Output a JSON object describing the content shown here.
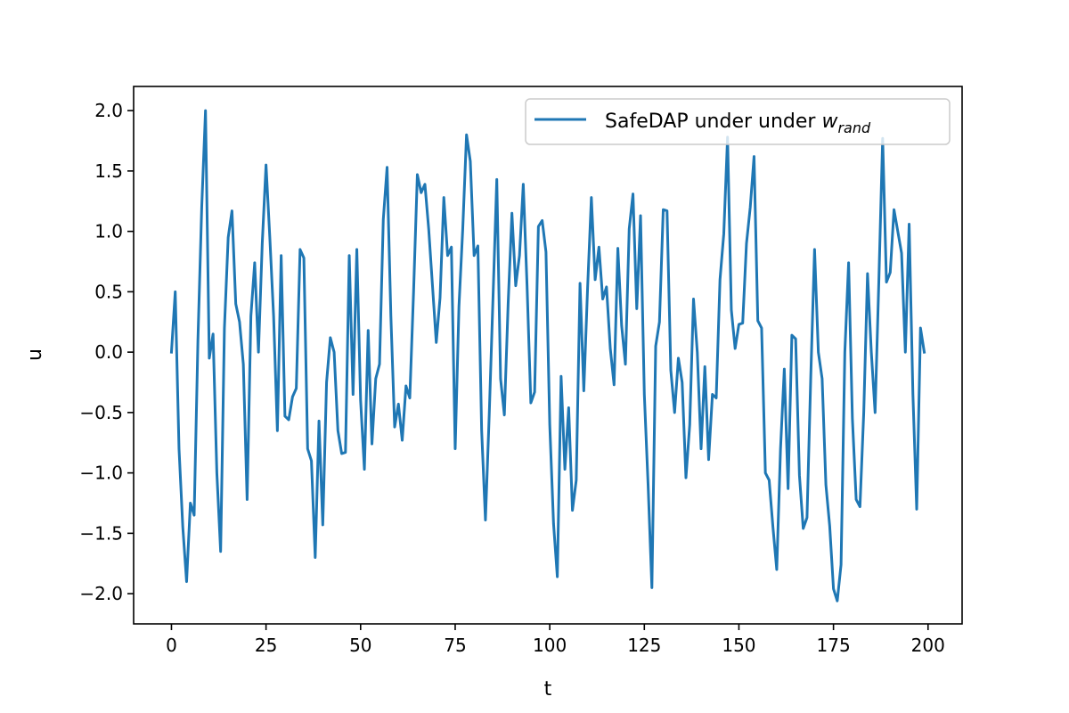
{
  "chart_data": {
    "type": "line",
    "xlabel": "t",
    "ylabel": "u",
    "xlim": [
      -10,
      209
    ],
    "ylim": [
      -2.25,
      2.2
    ],
    "xticks": [
      0,
      25,
      50,
      75,
      100,
      125,
      150,
      175,
      200
    ],
    "xtick_labels": [
      "0",
      "25",
      "50",
      "75",
      "100",
      "125",
      "150",
      "175",
      "200"
    ],
    "yticks": [
      -2.0,
      -1.5,
      -1.0,
      -0.5,
      0.0,
      0.5,
      1.0,
      1.5,
      2.0
    ],
    "ytick_labels": [
      "−2.0",
      "−1.5",
      "−1.0",
      "−0.5",
      "0.0",
      "0.5",
      "1.0",
      "1.5",
      "2.0"
    ],
    "grid": false,
    "legend_position": "top-right",
    "series": [
      {
        "name": "SafeDAP under under w_rand",
        "legend_main": "SafeDAP under under ",
        "legend_var": "w",
        "legend_sub": "rand",
        "color": "#1f77b4",
        "x_start": 0,
        "x_step": 1,
        "values": [
          0.0,
          0.5,
          -0.8,
          -1.45,
          -1.9,
          -1.25,
          -1.35,
          0.1,
          1.2,
          2.0,
          -0.05,
          0.15,
          -1.0,
          -1.65,
          0.2,
          0.95,
          1.17,
          0.4,
          0.25,
          -0.1,
          -1.22,
          0.3,
          0.74,
          0.0,
          0.9,
          1.55,
          0.95,
          0.3,
          -0.65,
          0.8,
          -0.53,
          -0.56,
          -0.37,
          -0.3,
          0.85,
          0.78,
          -0.8,
          -0.9,
          -1.7,
          -0.57,
          -1.43,
          -0.25,
          0.12,
          0.0,
          -0.65,
          -0.84,
          -0.83,
          0.8,
          -0.35,
          0.85,
          -0.4,
          -0.97,
          0.18,
          -0.76,
          -0.22,
          -0.1,
          1.1,
          1.53,
          0.3,
          -0.62,
          -0.43,
          -0.73,
          -0.28,
          -0.38,
          0.5,
          1.47,
          1.32,
          1.39,
          1.02,
          0.55,
          0.08,
          0.45,
          1.28,
          0.8,
          0.87,
          -0.8,
          0.38,
          1.02,
          1.8,
          1.58,
          0.8,
          0.88,
          -0.65,
          -1.39,
          -0.52,
          0.45,
          1.43,
          -0.22,
          -0.52,
          0.4,
          1.15,
          0.55,
          0.8,
          1.39,
          0.55,
          -0.42,
          -0.33,
          1.04,
          1.09,
          0.83,
          -0.6,
          -1.42,
          -1.86,
          -0.2,
          -0.97,
          -0.46,
          -1.31,
          -1.06,
          0.57,
          -0.32,
          0.53,
          1.28,
          0.6,
          0.87,
          0.44,
          0.54,
          0.03,
          -0.27,
          0.86,
          0.22,
          -0.1,
          1.02,
          1.31,
          0.36,
          1.13,
          -0.35,
          -1.1,
          -1.95,
          0.05,
          0.25,
          1.18,
          1.17,
          -0.15,
          -0.5,
          -0.05,
          -0.25,
          -1.04,
          -0.6,
          0.44,
          0.0,
          -0.8,
          -0.12,
          -0.89,
          -0.35,
          -0.38,
          0.6,
          0.98,
          1.78,
          0.35,
          0.03,
          0.23,
          0.24,
          0.9,
          1.2,
          1.62,
          0.26,
          0.2,
          -1.0,
          -1.06,
          -1.45,
          -1.8,
          -0.8,
          -0.14,
          -1.13,
          0.14,
          0.11,
          -1.02,
          -1.46,
          -1.37,
          -0.2,
          0.85,
          0.0,
          -0.22,
          -1.1,
          -1.44,
          -1.96,
          -2.06,
          -1.76,
          0.0,
          0.74,
          -0.55,
          -1.22,
          -1.28,
          -0.5,
          0.65,
          0.0,
          -0.5,
          0.6,
          1.77,
          0.58,
          0.66,
          1.18,
          1.0,
          0.82,
          0.0,
          1.06,
          -0.35,
          -1.3,
          0.2,
          0.0
        ]
      }
    ]
  }
}
